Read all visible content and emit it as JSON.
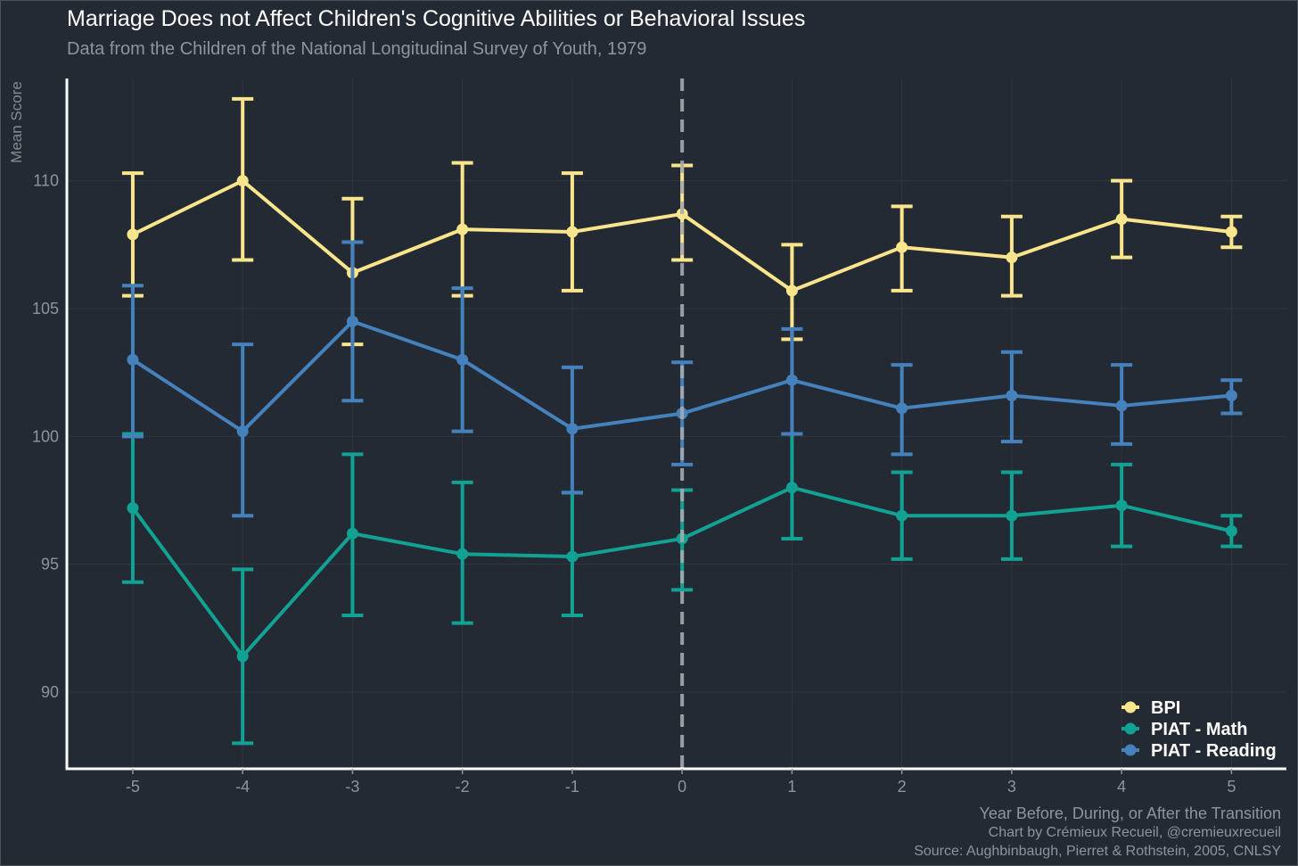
{
  "chart_data": {
    "type": "line",
    "title": "Marriage Does not Affect Children's Cognitive Abilities or Behavioral Issues",
    "subtitle": "Data from the Children of the National Longitudinal Survey of Youth, 1979",
    "xlabel": "Year Before, During, or After the Transition",
    "ylabel": "Mean Score",
    "caption": [
      "Chart by Crémieux Recueil, @cremieuxrecueil",
      "Source: Aughbinbaugh, Pierret & Rothstein, 2005, CNLSY"
    ],
    "x": [
      -5,
      -4,
      -3,
      -2,
      -1,
      0,
      1,
      2,
      3,
      4,
      5
    ],
    "x_ticks": [
      "-5",
      "-4",
      "-3",
      "-2",
      "-1",
      "0",
      "1",
      "2",
      "3",
      "4",
      "5"
    ],
    "y_ticks": [
      90,
      95,
      100,
      105,
      110
    ],
    "xlim": [
      -5.6,
      5.5
    ],
    "ylim": [
      87.0,
      114.0
    ],
    "vline_x": 0,
    "grid": true,
    "legend_position": "bottom-right",
    "series": [
      {
        "name": "BPI",
        "color": "#fbe58c",
        "values": [
          107.9,
          110.0,
          106.4,
          108.1,
          108.0,
          108.7,
          105.7,
          107.4,
          107.0,
          108.5,
          108.0
        ],
        "lower": [
          105.5,
          106.9,
          103.6,
          105.5,
          105.7,
          106.9,
          103.8,
          105.7,
          105.5,
          107.0,
          107.4
        ],
        "upper": [
          110.3,
          113.2,
          109.3,
          110.7,
          110.3,
          110.6,
          107.5,
          109.0,
          108.6,
          110.0,
          108.6
        ]
      },
      {
        "name": "PIAT - Math",
        "color": "#12a294",
        "values": [
          97.2,
          91.4,
          96.2,
          95.4,
          95.3,
          96.0,
          98.0,
          96.9,
          96.9,
          97.3,
          96.3
        ],
        "lower": [
          94.3,
          88.0,
          93.0,
          92.7,
          93.0,
          94.0,
          96.0,
          95.2,
          95.2,
          95.7,
          95.7
        ],
        "upper": [
          100.1,
          94.8,
          99.3,
          98.2,
          97.8,
          97.9,
          100.1,
          98.6,
          98.6,
          98.9,
          96.9
        ]
      },
      {
        "name": "PIAT - Reading",
        "color": "#4581bc",
        "values": [
          103.0,
          100.2,
          104.5,
          103.0,
          100.3,
          100.9,
          102.2,
          101.1,
          101.6,
          101.2,
          101.6
        ],
        "lower": [
          100.0,
          96.9,
          101.4,
          100.2,
          97.8,
          98.9,
          100.1,
          99.3,
          99.8,
          99.7,
          100.9
        ],
        "upper": [
          105.9,
          103.6,
          107.6,
          105.8,
          102.7,
          102.9,
          104.2,
          102.8,
          103.3,
          102.8,
          102.2
        ]
      }
    ]
  }
}
